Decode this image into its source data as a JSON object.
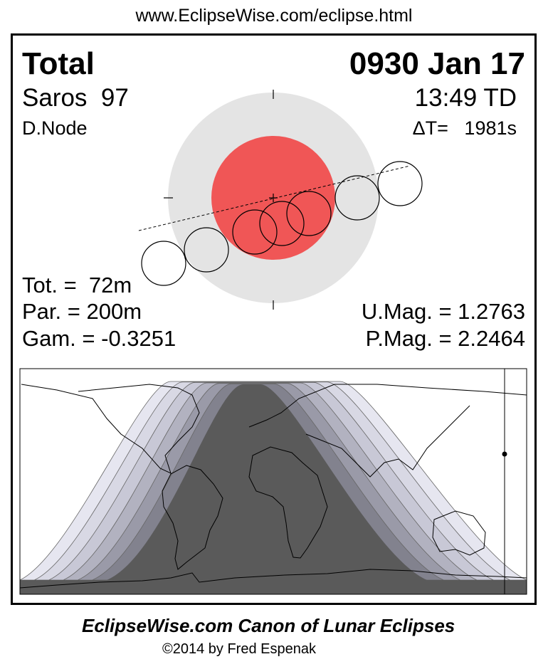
{
  "url": "www.EclipseWise.com/eclipse.html",
  "header": {
    "type": "Total",
    "date": "0930 Jan 17",
    "saros": "Saros  97",
    "time": "13:49 TD",
    "node": "D.Node",
    "delta_t": "ΔT=   1981s"
  },
  "stats": {
    "tot": "Tot. =  72m",
    "par": "Par. = 200m",
    "gam": "Gam. = -0.3251",
    "umag": "U.Mag. = 1.2763",
    "pmag": "P.Mag. = 2.2464"
  },
  "colors": {
    "penumbra": "#e4e4e4",
    "umbra": "#f05656",
    "map_bands": [
      "#e6e6f0",
      "#d8d8e4",
      "#c8c8d6",
      "#b2b2c0",
      "#9a9aa8",
      "#82828e",
      "#5a5a5a"
    ]
  },
  "footer": {
    "title": "EclipseWise.com Canon of Lunar Eclipses",
    "copyright": "©2014 by Fred Espenak"
  }
}
